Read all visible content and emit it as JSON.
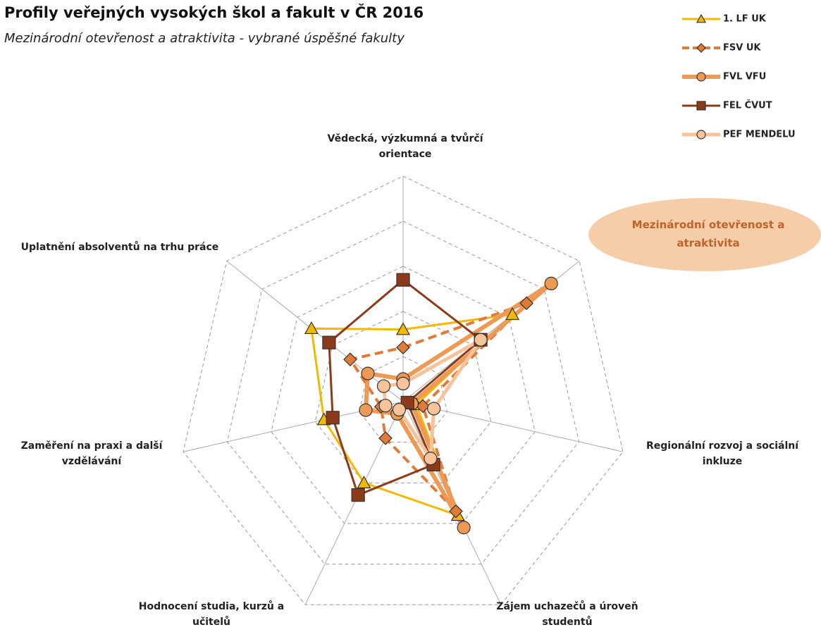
{
  "chart_data": {
    "type": "radar",
    "title": "Profily veřejných vysokých škol a fakult v ČR 2016",
    "subtitle": "Mezinárodní otevřenost a atraktivita - vybrané úspěšné fakulty",
    "categories": [
      "Vědecká, výzkumná a tvůrčí orientace",
      "Mezinárodní otevřenost a atraktivita",
      "Regionální rozvoj a sociální inkluze",
      "Zájem uchazečů a úroveň studentů",
      "Hodnocení studia, kurzů a učitelů",
      "Zaměření na praxi a další vzdělávání",
      "Uplatnění absolventů na trhu práce"
    ],
    "rlim": [
      0,
      5
    ],
    "rticks": [
      1,
      2,
      3,
      4,
      5
    ],
    "grid": true,
    "legend": "top-right",
    "series": [
      {
        "name": "1. LF UK",
        "color": "#f5b800",
        "marker": "triangle",
        "dashed": false,
        "values": [
          1.6,
          3.1,
          0.3,
          2.8,
          2.0,
          1.8,
          2.6
        ]
      },
      {
        "name": "FSV UK",
        "color": "#e07b39",
        "marker": "diamond",
        "dashed": true,
        "values": [
          1.2,
          3.5,
          0.45,
          2.7,
          0.9,
          0.5,
          1.5
        ]
      },
      {
        "name": "FVL VFU",
        "color": "#ee9a55",
        "marker": "circle",
        "dashed": false,
        "values": [
          0.5,
          4.2,
          0.2,
          3.1,
          0.3,
          0.85,
          1.0
        ]
      },
      {
        "name": "FEL ČVUT",
        "color": "#8b3a1a",
        "marker": "square",
        "dashed": false,
        "values": [
          2.7,
          2.2,
          0.1,
          1.55,
          2.3,
          1.6,
          2.1
        ]
      },
      {
        "name": "PEF MENDELU",
        "color": "#f6c39a",
        "marker": "circle",
        "dashed": false,
        "values": [
          0.4,
          2.2,
          0.7,
          1.4,
          0.2,
          0.4,
          0.55
        ]
      }
    ]
  }
}
